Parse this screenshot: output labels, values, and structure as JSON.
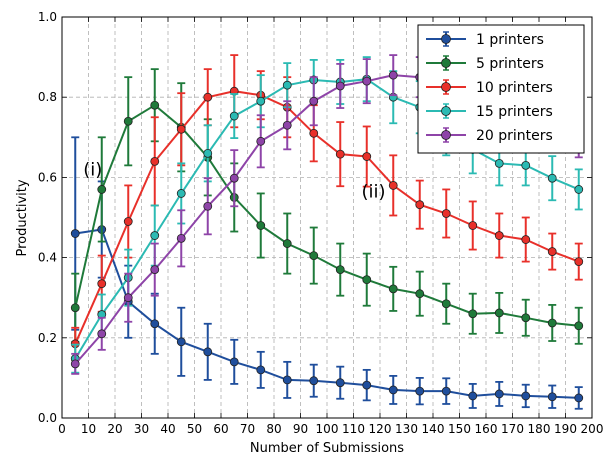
{
  "chart_data": {
    "type": "line",
    "xlabel": "Number of Submissions",
    "ylabel": "Productivity",
    "xlim": [
      0,
      200
    ],
    "ylim": [
      0.0,
      1.0
    ],
    "x_ticks": [
      "0",
      "10",
      "20",
      "30",
      "40",
      "50",
      "60",
      "70",
      "80",
      "90",
      "100",
      "110",
      "120",
      "130",
      "140",
      "150",
      "160",
      "170",
      "180",
      "190",
      "200"
    ],
    "x_tick_values": [
      0,
      10,
      20,
      30,
      40,
      50,
      60,
      70,
      80,
      90,
      100,
      110,
      120,
      130,
      140,
      150,
      160,
      170,
      180,
      190,
      200
    ],
    "y_ticks": [
      "0.0",
      "0.2",
      "0.4",
      "0.6",
      "0.8",
      "1.0"
    ],
    "y_tick_values": [
      0.0,
      0.2,
      0.4,
      0.6,
      0.8,
      1.0
    ],
    "grid": true,
    "legend_position": "top-right",
    "x": [
      5,
      15,
      25,
      35,
      45,
      55,
      65,
      75,
      85,
      95,
      105,
      115,
      125,
      135,
      145,
      155,
      165,
      175,
      185,
      195
    ],
    "series": [
      {
        "name": "1 printers",
        "color": "#1f4e9c",
        "values": [
          0.46,
          0.47,
          0.29,
          0.235,
          0.19,
          0.165,
          0.14,
          0.12,
          0.095,
          0.093,
          0.088,
          0.082,
          0.07,
          0.067,
          0.067,
          0.055,
          0.06,
          0.055,
          0.053,
          0.05
        ],
        "errors": [
          0.24,
          0.12,
          0.09,
          0.075,
          0.085,
          0.07,
          0.055,
          0.045,
          0.045,
          0.04,
          0.04,
          0.038,
          0.035,
          0.033,
          0.032,
          0.03,
          0.03,
          0.028,
          0.028,
          0.027
        ]
      },
      {
        "name": "5 printers",
        "color": "#1f7a3a",
        "values": [
          0.275,
          0.57,
          0.74,
          0.78,
          0.725,
          0.65,
          0.55,
          0.48,
          0.435,
          0.405,
          0.37,
          0.345,
          0.322,
          0.31,
          0.285,
          0.26,
          0.262,
          0.25,
          0.237,
          0.23
        ],
        "errors": [
          0.085,
          0.13,
          0.11,
          0.09,
          0.11,
          0.095,
          0.085,
          0.08,
          0.075,
          0.07,
          0.065,
          0.065,
          0.055,
          0.055,
          0.05,
          0.05,
          0.05,
          0.045,
          0.045,
          0.045
        ]
      },
      {
        "name": "10 printers",
        "color": "#e8302a",
        "values": [
          0.185,
          0.335,
          0.49,
          0.64,
          0.72,
          0.8,
          0.815,
          0.805,
          0.775,
          0.71,
          0.658,
          0.652,
          0.58,
          0.532,
          0.51,
          0.48,
          0.455,
          0.445,
          0.415,
          0.39
        ],
        "errors": [
          0.04,
          0.07,
          0.09,
          0.11,
          0.09,
          0.07,
          0.09,
          0.06,
          0.075,
          0.07,
          0.08,
          0.075,
          0.075,
          0.06,
          0.06,
          0.06,
          0.055,
          0.055,
          0.045,
          0.045
        ]
      },
      {
        "name": "15 printers",
        "color": "#2bbab3",
        "values": [
          0.148,
          0.258,
          0.35,
          0.455,
          0.56,
          0.66,
          0.753,
          0.79,
          0.83,
          0.843,
          0.838,
          0.845,
          0.8,
          0.775,
          0.72,
          0.67,
          0.635,
          0.63,
          0.598,
          0.57
        ],
        "errors": [
          0.035,
          0.05,
          0.07,
          0.075,
          0.075,
          0.07,
          0.055,
          0.065,
          0.055,
          0.05,
          0.055,
          0.055,
          0.065,
          0.065,
          0.065,
          0.06,
          0.055,
          0.05,
          0.055,
          0.05
        ]
      },
      {
        "name": "20 printers",
        "color": "#8e44a8",
        "values": [
          0.135,
          0.21,
          0.3,
          0.37,
          0.448,
          0.528,
          0.598,
          0.69,
          0.73,
          0.79,
          0.828,
          0.84,
          0.855,
          0.85,
          0.83,
          0.79,
          0.77,
          0.75,
          0.72,
          0.7
        ],
        "errors": [
          0.025,
          0.04,
          0.06,
          0.065,
          0.07,
          0.07,
          0.07,
          0.065,
          0.06,
          0.06,
          0.055,
          0.055,
          0.05,
          0.05,
          0.05,
          0.05,
          0.05,
          0.05,
          0.05,
          0.05
        ]
      }
    ],
    "annotations": [
      {
        "text": "(i)",
        "x": 8,
        "y": 0.605
      },
      {
        "text": "(ii)",
        "x": 113,
        "y": 0.55
      }
    ]
  }
}
